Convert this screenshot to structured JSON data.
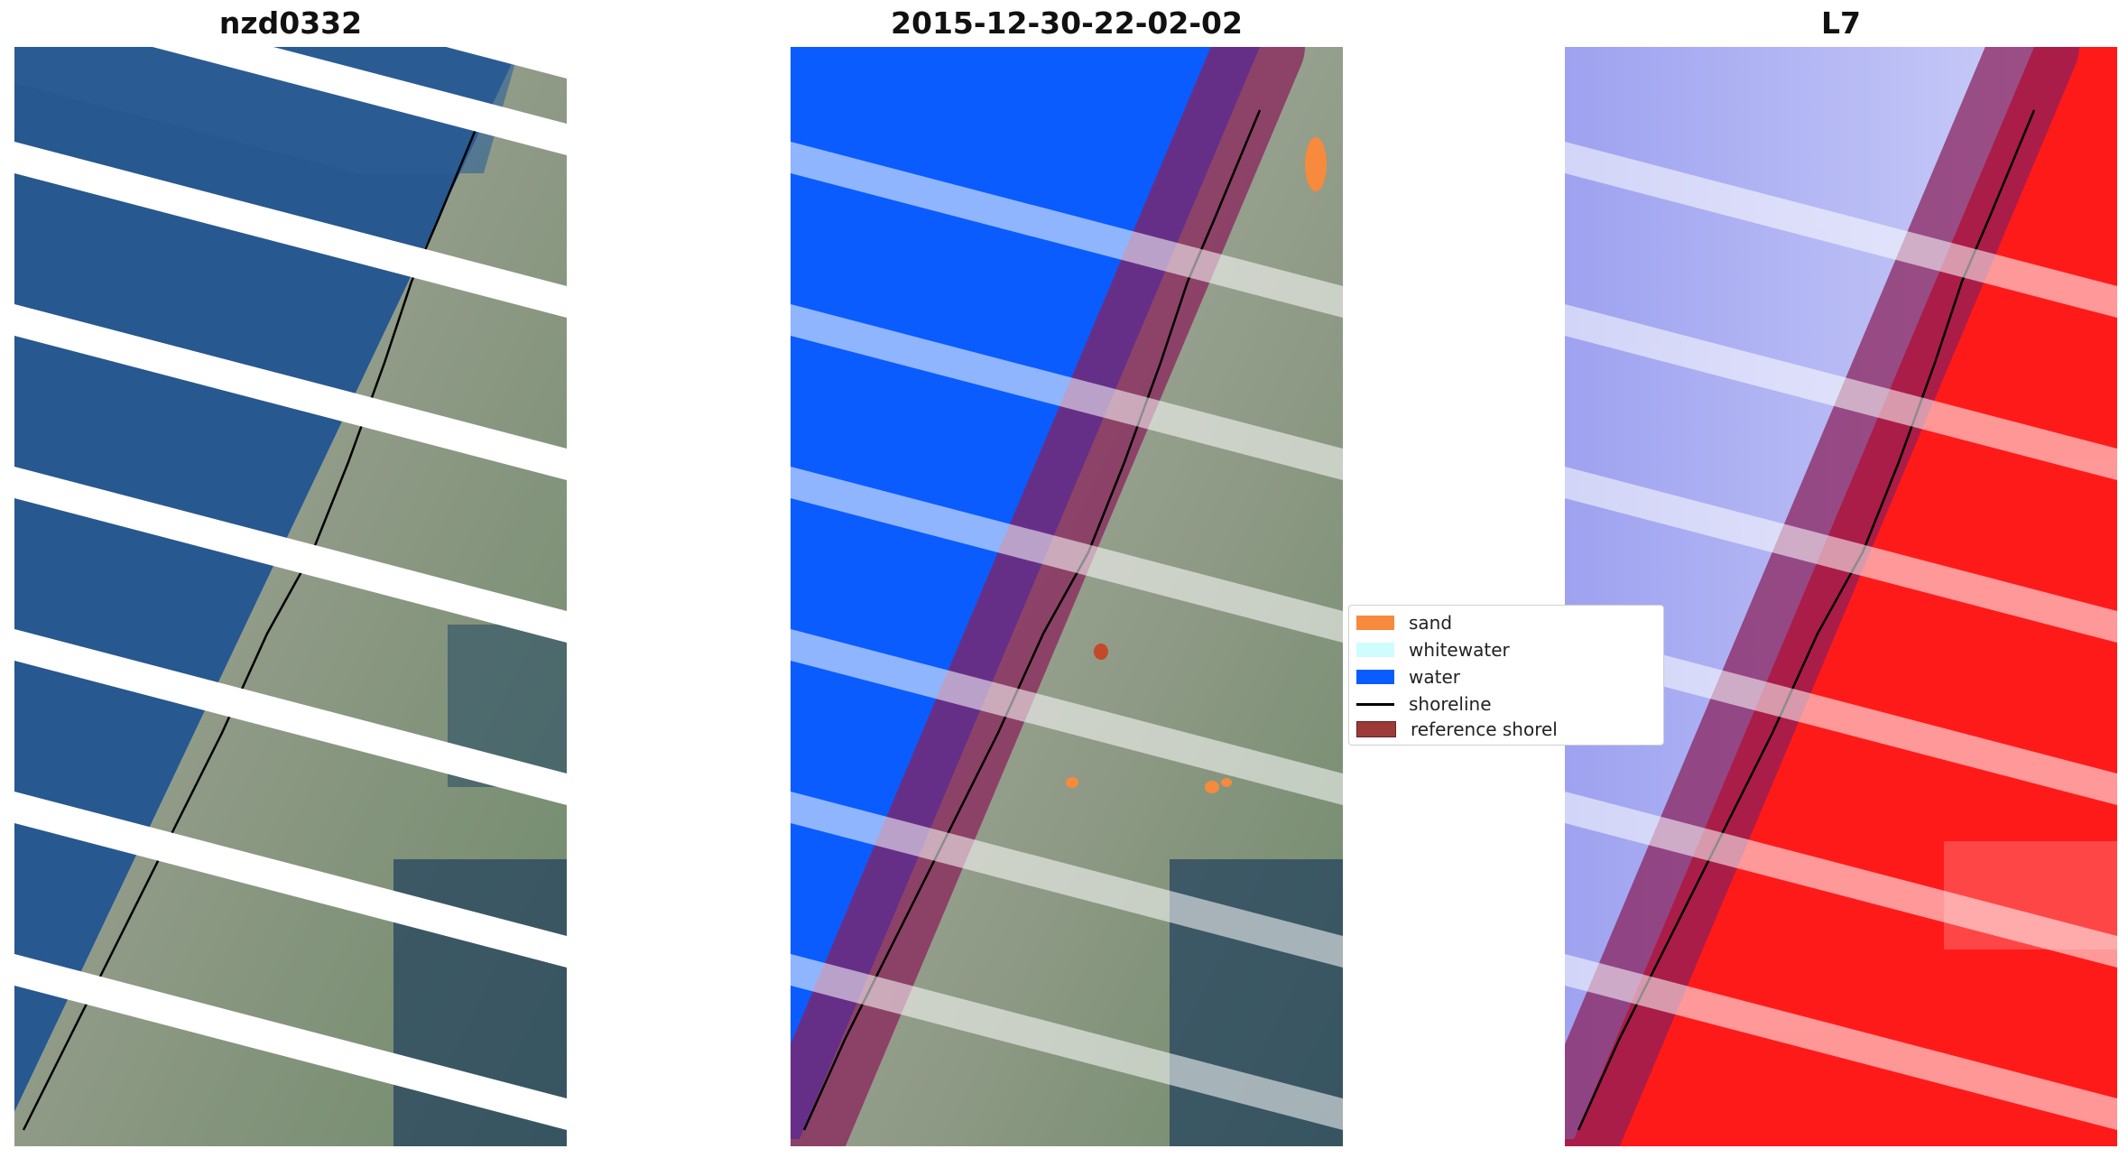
{
  "panels": [
    {
      "title": "nzd0332"
    },
    {
      "title": "2015-12-30-22-02-02"
    },
    {
      "title": "L7"
    }
  ],
  "legend": {
    "items": [
      {
        "label": "sand",
        "color": "#f78a3c",
        "kind": "patch"
      },
      {
        "label": "whitewater",
        "color": "#cffcfc",
        "kind": "patch"
      },
      {
        "label": "water",
        "color": "#0a5cff",
        "kind": "patch"
      },
      {
        "label": "shoreline",
        "color": "#000000",
        "kind": "line"
      },
      {
        "label": "reference shorel",
        "color": "#9c3a3a",
        "kind": "patch"
      }
    ]
  },
  "colors": {
    "sea_rgb": "#27588f",
    "land_rgb": "#8f9a8a",
    "water_class": "#0a5cff",
    "buffer": "#8a1f5a",
    "index_water": "#b4b8f5",
    "index_land": "#ff1a1a"
  }
}
